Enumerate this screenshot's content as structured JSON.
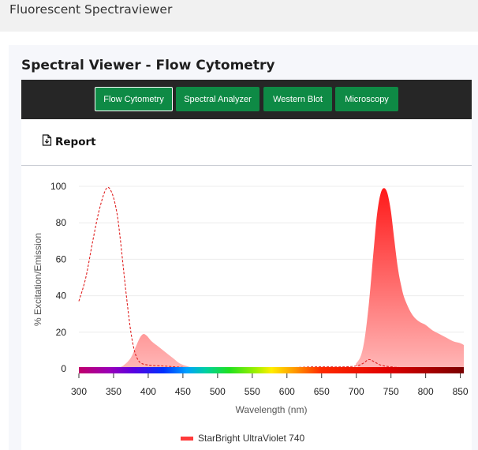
{
  "app": {
    "title": "Fluorescent Spectraviewer"
  },
  "panel": {
    "title": "Spectral Viewer - Flow Cytometry"
  },
  "nav": {
    "buttons": [
      {
        "label": "Flow Cytometry",
        "active": true
      },
      {
        "label": "Spectral Analyzer",
        "active": false
      },
      {
        "label": "Western Blot",
        "active": false
      },
      {
        "label": "Microscopy",
        "active": false
      }
    ]
  },
  "toolbar": {
    "report_label": "Report",
    "report_icon": "document-download-icon"
  },
  "colors": {
    "nav_bg": "#262626",
    "button": "#0e8a45",
    "emission": "#ff2020",
    "excitation": "#e02020"
  },
  "chart_data": {
    "type": "area",
    "xlabel": "Wavelength (nm)",
    "ylabel": "% Excitation/Emission",
    "xlim": [
      300,
      855
    ],
    "ylim": [
      0,
      100
    ],
    "xticks": [
      300,
      350,
      400,
      450,
      500,
      550,
      600,
      650,
      700,
      750,
      800,
      850
    ],
    "yticks": [
      0,
      20,
      40,
      60,
      80,
      100
    ],
    "grid": "horizontal",
    "legend_position": "bottom",
    "series": [
      {
        "name": "StarBright UltraViolet 740",
        "kind": "emission",
        "style": "filled",
        "x": [
          355,
          365,
          375,
          382,
          388,
          393,
          398,
          405,
          415,
          425,
          435,
          445,
          455,
          465,
          475,
          680,
          700,
          710,
          718,
          725,
          730,
          735,
          740,
          745,
          750,
          755,
          760,
          765,
          770,
          780,
          790,
          800,
          810,
          820,
          830,
          840,
          850,
          855
        ],
        "y": [
          0,
          2,
          6,
          12,
          17,
          19,
          18,
          15,
          12,
          9,
          6,
          3,
          1.5,
          0.5,
          0,
          0,
          3,
          12,
          35,
          65,
          85,
          96,
          99,
          96,
          86,
          70,
          55,
          45,
          38,
          30,
          26,
          24,
          21,
          19,
          17,
          15,
          14,
          13
        ]
      },
      {
        "name": "StarBright UltraViolet 740",
        "kind": "excitation",
        "style": "dashed",
        "x": [
          300,
          310,
          320,
          330,
          340,
          348,
          355,
          360,
          365,
          370,
          375,
          380,
          385,
          390,
          400,
          420,
          440,
          460,
          500,
          550,
          600,
          640,
          680,
          700,
          710,
          718,
          725,
          735,
          750,
          770,
          800,
          850,
          855
        ],
        "y": [
          37,
          50,
          70,
          88,
          99,
          96,
          85,
          70,
          52,
          35,
          20,
          10,
          5,
          3,
          2,
          1.5,
          1,
          0.5,
          0.2,
          0.3,
          0.5,
          1,
          1,
          1.5,
          3,
          5,
          4,
          2,
          1,
          0.5,
          0.3,
          0.2,
          0.2
        ]
      }
    ]
  }
}
